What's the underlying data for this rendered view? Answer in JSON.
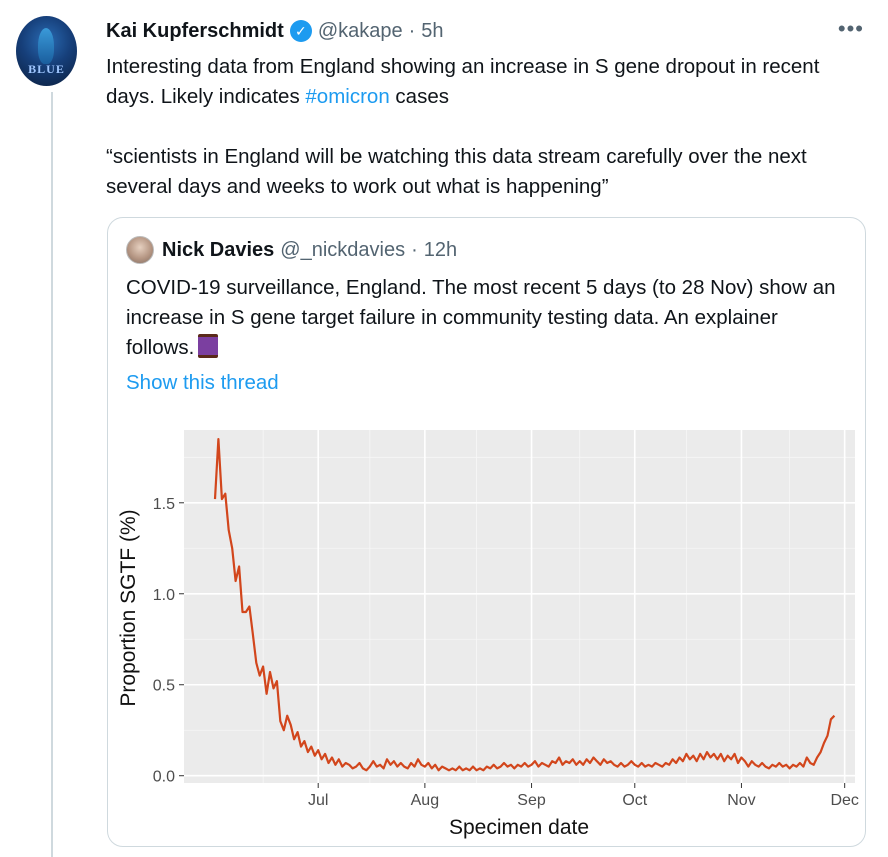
{
  "tweet": {
    "author_name": "Kai Kupferschmidt",
    "handle": "@kakape",
    "time": "5h",
    "separator": "·",
    "more_icon": "more-horizontal-icon",
    "avatar_text": "BLUE",
    "text_line1_pre": "Interesting data from England showing an increase in S gene dropout in recent days. Likely indicates ",
    "hashtag": "#omicron",
    "text_line1_post": " cases",
    "text_paragraph2": "“scientists in England will be watching this data stream carefully over the next several days and weeks to work out what is happening”",
    "verified_icon": "verified-badge-icon"
  },
  "quote": {
    "author_name": "Nick Davies",
    "handle": "@_nickdavies",
    "time": "12h",
    "separator": "·",
    "text": "COVID-19 surveillance, England. The most recent 5 days (to 28 Nov) show an increase in S gene target failure in community testing data. An explainer follows.",
    "emoji_icon": "thread-spool-icon",
    "show_thread": "Show this thread"
  },
  "colors": {
    "link": "#1d9bf0",
    "line": "#d2461c",
    "panel": "#ebebeb"
  },
  "chart_data": {
    "type": "line",
    "xlabel": "Specimen date",
    "ylabel": "Proportion SGTF (%)",
    "x_ticks": [
      "Jul",
      "Aug",
      "Sep",
      "Oct",
      "Nov",
      "Dec"
    ],
    "y_ticks": [
      "0.0",
      "0.5",
      "1.0",
      "1.5"
    ],
    "ylim": [
      -0.04,
      1.9
    ],
    "grid": true,
    "series": [
      {
        "values": [
          {
            "x": "2021-06-01",
            "y": 1.52
          },
          {
            "x": "2021-06-02",
            "y": 1.85
          },
          {
            "x": "2021-06-03",
            "y": 1.52
          },
          {
            "x": "2021-06-04",
            "y": 1.55
          },
          {
            "x": "2021-06-05",
            "y": 1.35
          },
          {
            "x": "2021-06-06",
            "y": 1.25
          },
          {
            "x": "2021-06-07",
            "y": 1.07
          },
          {
            "x": "2021-06-08",
            "y": 1.15
          },
          {
            "x": "2021-06-09",
            "y": 0.9
          },
          {
            "x": "2021-06-10",
            "y": 0.9
          },
          {
            "x": "2021-06-11",
            "y": 0.93
          },
          {
            "x": "2021-06-12",
            "y": 0.78
          },
          {
            "x": "2021-06-13",
            "y": 0.62
          },
          {
            "x": "2021-06-14",
            "y": 0.55
          },
          {
            "x": "2021-06-15",
            "y": 0.6
          },
          {
            "x": "2021-06-16",
            "y": 0.45
          },
          {
            "x": "2021-06-17",
            "y": 0.57
          },
          {
            "x": "2021-06-18",
            "y": 0.48
          },
          {
            "x": "2021-06-19",
            "y": 0.52
          },
          {
            "x": "2021-06-20",
            "y": 0.3
          },
          {
            "x": "2021-06-21",
            "y": 0.25
          },
          {
            "x": "2021-06-22",
            "y": 0.33
          },
          {
            "x": "2021-06-23",
            "y": 0.28
          },
          {
            "x": "2021-06-24",
            "y": 0.2
          },
          {
            "x": "2021-06-25",
            "y": 0.24
          },
          {
            "x": "2021-06-26",
            "y": 0.16
          },
          {
            "x": "2021-06-27",
            "y": 0.19
          },
          {
            "x": "2021-06-28",
            "y": 0.13
          },
          {
            "x": "2021-06-29",
            "y": 0.16
          },
          {
            "x": "2021-06-30",
            "y": 0.11
          },
          {
            "x": "2021-07-01",
            "y": 0.14
          },
          {
            "x": "2021-07-02",
            "y": 0.09
          },
          {
            "x": "2021-07-03",
            "y": 0.12
          },
          {
            "x": "2021-07-04",
            "y": 0.07
          },
          {
            "x": "2021-07-05",
            "y": 0.1
          },
          {
            "x": "2021-07-06",
            "y": 0.06
          },
          {
            "x": "2021-07-07",
            "y": 0.09
          },
          {
            "x": "2021-07-08",
            "y": 0.05
          },
          {
            "x": "2021-07-09",
            "y": 0.07
          },
          {
            "x": "2021-07-10",
            "y": 0.06
          },
          {
            "x": "2021-07-11",
            "y": 0.04
          },
          {
            "x": "2021-07-12",
            "y": 0.05
          },
          {
            "x": "2021-07-13",
            "y": 0.07
          },
          {
            "x": "2021-07-14",
            "y": 0.04
          },
          {
            "x": "2021-07-15",
            "y": 0.03
          },
          {
            "x": "2021-07-16",
            "y": 0.05
          },
          {
            "x": "2021-07-17",
            "y": 0.08
          },
          {
            "x": "2021-07-18",
            "y": 0.05
          },
          {
            "x": "2021-07-19",
            "y": 0.06
          },
          {
            "x": "2021-07-20",
            "y": 0.04
          },
          {
            "x": "2021-07-21",
            "y": 0.09
          },
          {
            "x": "2021-07-22",
            "y": 0.06
          },
          {
            "x": "2021-07-23",
            "y": 0.08
          },
          {
            "x": "2021-07-24",
            "y": 0.05
          },
          {
            "x": "2021-07-25",
            "y": 0.07
          },
          {
            "x": "2021-07-26",
            "y": 0.05
          },
          {
            "x": "2021-07-27",
            "y": 0.04
          },
          {
            "x": "2021-07-28",
            "y": 0.07
          },
          {
            "x": "2021-07-29",
            "y": 0.05
          },
          {
            "x": "2021-07-30",
            "y": 0.09
          },
          {
            "x": "2021-07-31",
            "y": 0.06
          },
          {
            "x": "2021-08-01",
            "y": 0.05
          },
          {
            "x": "2021-08-02",
            "y": 0.07
          },
          {
            "x": "2021-08-03",
            "y": 0.04
          },
          {
            "x": "2021-08-04",
            "y": 0.06
          },
          {
            "x": "2021-08-05",
            "y": 0.03
          },
          {
            "x": "2021-08-06",
            "y": 0.05
          },
          {
            "x": "2021-08-07",
            "y": 0.04
          },
          {
            "x": "2021-08-08",
            "y": 0.03
          },
          {
            "x": "2021-08-09",
            "y": 0.04
          },
          {
            "x": "2021-08-10",
            "y": 0.03
          },
          {
            "x": "2021-08-11",
            "y": 0.05
          },
          {
            "x": "2021-08-12",
            "y": 0.03
          },
          {
            "x": "2021-08-13",
            "y": 0.04
          },
          {
            "x": "2021-08-14",
            "y": 0.03
          },
          {
            "x": "2021-08-15",
            "y": 0.05
          },
          {
            "x": "2021-08-16",
            "y": 0.03
          },
          {
            "x": "2021-08-17",
            "y": 0.04
          },
          {
            "x": "2021-08-18",
            "y": 0.03
          },
          {
            "x": "2021-08-19",
            "y": 0.05
          },
          {
            "x": "2021-08-20",
            "y": 0.04
          },
          {
            "x": "2021-08-21",
            "y": 0.06
          },
          {
            "x": "2021-08-22",
            "y": 0.04
          },
          {
            "x": "2021-08-23",
            "y": 0.05
          },
          {
            "x": "2021-08-24",
            "y": 0.07
          },
          {
            "x": "2021-08-25",
            "y": 0.05
          },
          {
            "x": "2021-08-26",
            "y": 0.06
          },
          {
            "x": "2021-08-27",
            "y": 0.04
          },
          {
            "x": "2021-08-28",
            "y": 0.06
          },
          {
            "x": "2021-08-29",
            "y": 0.05
          },
          {
            "x": "2021-08-30",
            "y": 0.07
          },
          {
            "x": "2021-08-31",
            "y": 0.05
          },
          {
            "x": "2021-09-01",
            "y": 0.06
          },
          {
            "x": "2021-09-02",
            "y": 0.08
          },
          {
            "x": "2021-09-03",
            "y": 0.05
          },
          {
            "x": "2021-09-04",
            "y": 0.07
          },
          {
            "x": "2021-09-05",
            "y": 0.06
          },
          {
            "x": "2021-09-06",
            "y": 0.05
          },
          {
            "x": "2021-09-07",
            "y": 0.08
          },
          {
            "x": "2021-09-08",
            "y": 0.07
          },
          {
            "x": "2021-09-09",
            "y": 0.1
          },
          {
            "x": "2021-09-10",
            "y": 0.06
          },
          {
            "x": "2021-09-11",
            "y": 0.08
          },
          {
            "x": "2021-09-12",
            "y": 0.07
          },
          {
            "x": "2021-09-13",
            "y": 0.09
          },
          {
            "x": "2021-09-14",
            "y": 0.06
          },
          {
            "x": "2021-09-15",
            "y": 0.08
          },
          {
            "x": "2021-09-16",
            "y": 0.06
          },
          {
            "x": "2021-09-17",
            "y": 0.09
          },
          {
            "x": "2021-09-18",
            "y": 0.07
          },
          {
            "x": "2021-09-19",
            "y": 0.1
          },
          {
            "x": "2021-09-20",
            "y": 0.08
          },
          {
            "x": "2021-09-21",
            "y": 0.06
          },
          {
            "x": "2021-09-22",
            "y": 0.09
          },
          {
            "x": "2021-09-23",
            "y": 0.07
          },
          {
            "x": "2021-09-24",
            "y": 0.08
          },
          {
            "x": "2021-09-25",
            "y": 0.06
          },
          {
            "x": "2021-09-26",
            "y": 0.05
          },
          {
            "x": "2021-09-27",
            "y": 0.07
          },
          {
            "x": "2021-09-28",
            "y": 0.05
          },
          {
            "x": "2021-09-29",
            "y": 0.06
          },
          {
            "x": "2021-09-30",
            "y": 0.08
          },
          {
            "x": "2021-10-01",
            "y": 0.06
          },
          {
            "x": "2021-10-02",
            "y": 0.05
          },
          {
            "x": "2021-10-03",
            "y": 0.07
          },
          {
            "x": "2021-10-04",
            "y": 0.05
          },
          {
            "x": "2021-10-05",
            "y": 0.06
          },
          {
            "x": "2021-10-06",
            "y": 0.05
          },
          {
            "x": "2021-10-07",
            "y": 0.07
          },
          {
            "x": "2021-10-08",
            "y": 0.06
          },
          {
            "x": "2021-10-09",
            "y": 0.05
          },
          {
            "x": "2021-10-10",
            "y": 0.07
          },
          {
            "x": "2021-10-11",
            "y": 0.06
          },
          {
            "x": "2021-10-12",
            "y": 0.09
          },
          {
            "x": "2021-10-13",
            "y": 0.07
          },
          {
            "x": "2021-10-14",
            "y": 0.1
          },
          {
            "x": "2021-10-15",
            "y": 0.08
          },
          {
            "x": "2021-10-16",
            "y": 0.12
          },
          {
            "x": "2021-10-17",
            "y": 0.09
          },
          {
            "x": "2021-10-18",
            "y": 0.11
          },
          {
            "x": "2021-10-19",
            "y": 0.08
          },
          {
            "x": "2021-10-20",
            "y": 0.12
          },
          {
            "x": "2021-10-21",
            "y": 0.09
          },
          {
            "x": "2021-10-22",
            "y": 0.13
          },
          {
            "x": "2021-10-23",
            "y": 0.1
          },
          {
            "x": "2021-10-24",
            "y": 0.12
          },
          {
            "x": "2021-10-25",
            "y": 0.09
          },
          {
            "x": "2021-10-26",
            "y": 0.12
          },
          {
            "x": "2021-10-27",
            "y": 0.08
          },
          {
            "x": "2021-10-28",
            "y": 0.11
          },
          {
            "x": "2021-10-29",
            "y": 0.09
          },
          {
            "x": "2021-10-30",
            "y": 0.12
          },
          {
            "x": "2021-10-31",
            "y": 0.07
          },
          {
            "x": "2021-11-01",
            "y": 0.1
          },
          {
            "x": "2021-11-02",
            "y": 0.08
          },
          {
            "x": "2021-11-03",
            "y": 0.05
          },
          {
            "x": "2021-11-04",
            "y": 0.08
          },
          {
            "x": "2021-11-05",
            "y": 0.06
          },
          {
            "x": "2021-11-06",
            "y": 0.05
          },
          {
            "x": "2021-11-07",
            "y": 0.07
          },
          {
            "x": "2021-11-08",
            "y": 0.05
          },
          {
            "x": "2021-11-09",
            "y": 0.04
          },
          {
            "x": "2021-11-10",
            "y": 0.06
          },
          {
            "x": "2021-11-11",
            "y": 0.05
          },
          {
            "x": "2021-11-12",
            "y": 0.07
          },
          {
            "x": "2021-11-13",
            "y": 0.05
          },
          {
            "x": "2021-11-14",
            "y": 0.06
          },
          {
            "x": "2021-11-15",
            "y": 0.04
          },
          {
            "x": "2021-11-16",
            "y": 0.06
          },
          {
            "x": "2021-11-17",
            "y": 0.05
          },
          {
            "x": "2021-11-18",
            "y": 0.07
          },
          {
            "x": "2021-11-19",
            "y": 0.05
          },
          {
            "x": "2021-11-20",
            "y": 0.1
          },
          {
            "x": "2021-11-21",
            "y": 0.07
          },
          {
            "x": "2021-11-22",
            "y": 0.06
          },
          {
            "x": "2021-11-23",
            "y": 0.1
          },
          {
            "x": "2021-11-24",
            "y": 0.13
          },
          {
            "x": "2021-11-25",
            "y": 0.18
          },
          {
            "x": "2021-11-26",
            "y": 0.22
          },
          {
            "x": "2021-11-27",
            "y": 0.31
          },
          {
            "x": "2021-11-28",
            "y": 0.33
          }
        ]
      }
    ]
  }
}
